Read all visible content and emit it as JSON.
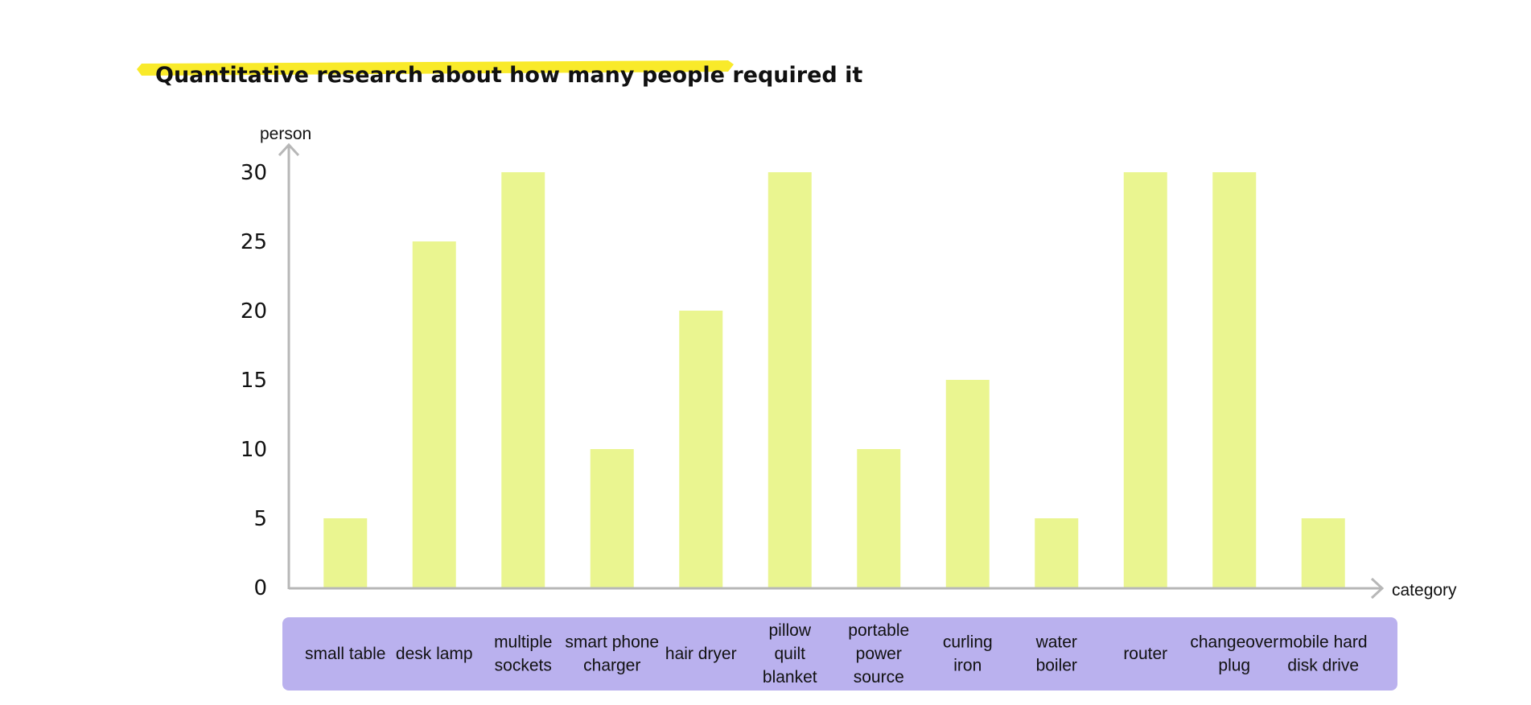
{
  "chart_data": {
    "type": "bar",
    "title": "Quantitative research about how many people required it",
    "xlabel": "category",
    "ylabel": "person",
    "categories": [
      "small table",
      "desk lamp",
      "multiple sockets",
      "smart phone charger",
      "hair dryer",
      "pillow quilt blanket",
      "portable power source",
      "curling iron",
      "water boiler",
      "router",
      "changeover plug",
      "mobile hard disk drive"
    ],
    "values": [
      5,
      25,
      30,
      10,
      20,
      30,
      10,
      15,
      5,
      30,
      30,
      5
    ],
    "ylim": [
      0,
      30
    ],
    "yticks": [
      0,
      5,
      10,
      15,
      20,
      25,
      30
    ],
    "grid": false,
    "legend": "none",
    "colors": {
      "bar": "#eaf590",
      "category_band": "#bab1ee",
      "title_highlight": "#f9ea2a",
      "axis": "#b7b7b7"
    }
  }
}
